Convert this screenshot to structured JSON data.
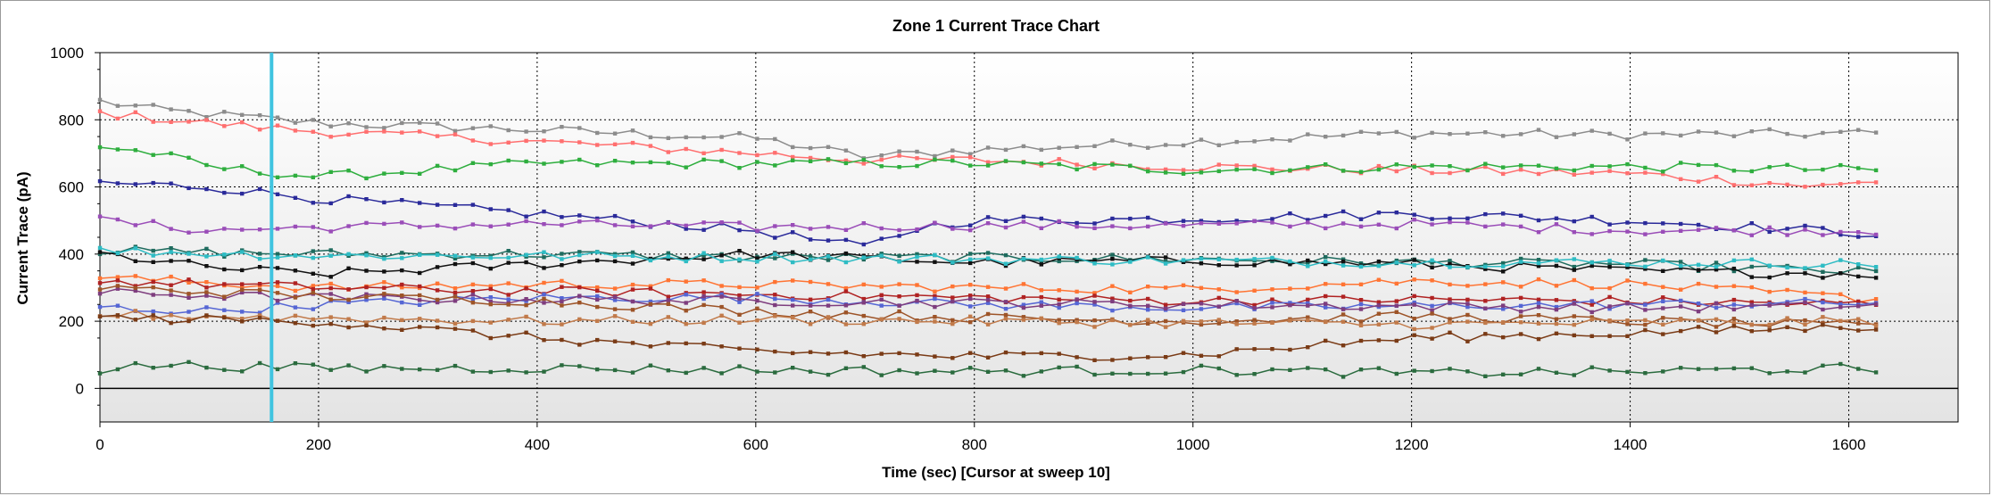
{
  "chart_data": {
    "type": "line",
    "title": "Zone 1 Current Trace Chart",
    "xlabel": "Time (sec) [Cursor at sweep 10]",
    "ylabel": "Current Trace (pA)",
    "xlim": [
      0,
      1700
    ],
    "ylim": [
      -100,
      1000
    ],
    "xticks": [
      0,
      200,
      400,
      600,
      800,
      1000,
      1200,
      1400,
      1600
    ],
    "yticks": [
      0,
      200,
      400,
      600,
      800,
      1000
    ],
    "cursor_x": 157,
    "grid": true,
    "legend": "none",
    "background_gradient": [
      "#ffffff",
      "#e4e4e4"
    ],
    "x_start": 0,
    "x_step": 16.25,
    "x_count": 101,
    "series": [
      {
        "color": "#8c8c8c",
        "anchors": [
          [
            0,
            855
          ],
          [
            50,
            830
          ],
          [
            200,
            790
          ],
          [
            400,
            770
          ],
          [
            600,
            745
          ],
          [
            700,
            690
          ],
          [
            800,
            710
          ],
          [
            1000,
            735
          ],
          [
            1200,
            760
          ],
          [
            1400,
            755
          ],
          [
            1630,
            760
          ]
        ]
      },
      {
        "color": "#ff6f6f",
        "anchors": [
          [
            0,
            820
          ],
          [
            100,
            790
          ],
          [
            200,
            765
          ],
          [
            400,
            735
          ],
          [
            600,
            700
          ],
          [
            700,
            680
          ],
          [
            800,
            680
          ],
          [
            1000,
            660
          ],
          [
            1200,
            650
          ],
          [
            1400,
            640
          ],
          [
            1580,
            600
          ],
          [
            1630,
            620
          ]
        ]
      },
      {
        "color": "#2eae3e",
        "anchors": [
          [
            0,
            720
          ],
          [
            50,
            700
          ],
          [
            100,
            660
          ],
          [
            200,
            630
          ],
          [
            400,
            670
          ],
          [
            600,
            670
          ],
          [
            800,
            670
          ],
          [
            1000,
            650
          ],
          [
            1200,
            660
          ],
          [
            1400,
            660
          ],
          [
            1630,
            650
          ]
        ]
      },
      {
        "color": "#2a2a9a",
        "anchors": [
          [
            0,
            612
          ],
          [
            100,
            600
          ],
          [
            200,
            565
          ],
          [
            400,
            520
          ],
          [
            600,
            470
          ],
          [
            700,
            420
          ],
          [
            750,
            480
          ],
          [
            800,
            500
          ],
          [
            1000,
            505
          ],
          [
            1200,
            520
          ],
          [
            1400,
            500
          ],
          [
            1630,
            460
          ]
        ]
      },
      {
        "color": "#9a4db8",
        "anchors": [
          [
            0,
            500
          ],
          [
            100,
            470
          ],
          [
            200,
            480
          ],
          [
            400,
            490
          ],
          [
            600,
            480
          ],
          [
            800,
            485
          ],
          [
            1000,
            485
          ],
          [
            1200,
            490
          ],
          [
            1400,
            470
          ],
          [
            1630,
            470
          ]
        ]
      },
      {
        "color": "#1e6b5e",
        "anchors": [
          [
            0,
            410
          ],
          [
            200,
            400
          ],
          [
            400,
            400
          ],
          [
            600,
            390
          ],
          [
            800,
            390
          ],
          [
            1000,
            385
          ],
          [
            1200,
            375
          ],
          [
            1400,
            370
          ],
          [
            1630,
            345
          ]
        ]
      },
      {
        "color": "#111111",
        "anchors": [
          [
            0,
            400
          ],
          [
            100,
            360
          ],
          [
            200,
            340
          ],
          [
            400,
            370
          ],
          [
            600,
            400
          ],
          [
            800,
            375
          ],
          [
            1000,
            380
          ],
          [
            1200,
            370
          ],
          [
            1400,
            350
          ],
          [
            1630,
            340
          ]
        ]
      },
      {
        "color": "#2ebcc4",
        "anchors": [
          [
            0,
            410
          ],
          [
            200,
            395
          ],
          [
            400,
            395
          ],
          [
            600,
            390
          ],
          [
            800,
            385
          ],
          [
            1000,
            380
          ],
          [
            1200,
            375
          ],
          [
            1400,
            375
          ],
          [
            1630,
            370
          ]
        ]
      },
      {
        "color": "#ff7433",
        "anchors": [
          [
            0,
            330
          ],
          [
            200,
            300
          ],
          [
            400,
            310
          ],
          [
            600,
            310
          ],
          [
            800,
            300
          ],
          [
            1000,
            295
          ],
          [
            1200,
            320
          ],
          [
            1400,
            310
          ],
          [
            1630,
            265
          ]
        ]
      },
      {
        "color": "#b02222",
        "anchors": [
          [
            0,
            320
          ],
          [
            200,
            300
          ],
          [
            400,
            290
          ],
          [
            600,
            280
          ],
          [
            800,
            270
          ],
          [
            1000,
            260
          ],
          [
            1200,
            265
          ],
          [
            1400,
            260
          ],
          [
            1630,
            250
          ]
        ]
      },
      {
        "color": "#5566d4",
        "anchors": [
          [
            0,
            240
          ],
          [
            100,
            230
          ],
          [
            200,
            250
          ],
          [
            400,
            270
          ],
          [
            600,
            270
          ],
          [
            800,
            250
          ],
          [
            1000,
            240
          ],
          [
            1200,
            245
          ],
          [
            1400,
            250
          ],
          [
            1630,
            255
          ]
        ]
      },
      {
        "color": "#7e3d7e",
        "anchors": [
          [
            0,
            285
          ],
          [
            200,
            270
          ],
          [
            400,
            265
          ],
          [
            600,
            260
          ],
          [
            800,
            255
          ],
          [
            1000,
            250
          ],
          [
            1200,
            245
          ],
          [
            1400,
            240
          ],
          [
            1630,
            245
          ]
        ]
      },
      {
        "color": "#9d5428",
        "anchors": [
          [
            0,
            300
          ],
          [
            200,
            275
          ],
          [
            400,
            260
          ],
          [
            600,
            230
          ],
          [
            800,
            210
          ],
          [
            1000,
            200
          ],
          [
            1200,
            215
          ],
          [
            1400,
            200
          ],
          [
            1630,
            185
          ]
        ]
      },
      {
        "color": "#c17a4a",
        "anchors": [
          [
            0,
            220
          ],
          [
            200,
            210
          ],
          [
            400,
            200
          ],
          [
            600,
            205
          ],
          [
            800,
            200
          ],
          [
            1000,
            195
          ],
          [
            1200,
            190
          ],
          [
            1400,
            195
          ],
          [
            1630,
            200
          ]
        ]
      },
      {
        "color": "#7a3b16",
        "anchors": [
          [
            0,
            210
          ],
          [
            200,
            200
          ],
          [
            400,
            150
          ],
          [
            600,
            110
          ],
          [
            800,
            95
          ],
          [
            1000,
            100
          ],
          [
            1200,
            150
          ],
          [
            1400,
            165
          ],
          [
            1630,
            185
          ]
        ]
      },
      {
        "color": "#2a6b3e",
        "anchors": [
          [
            0,
            55
          ],
          [
            50,
            70
          ],
          [
            200,
            60
          ],
          [
            400,
            60
          ],
          [
            600,
            55
          ],
          [
            800,
            50
          ],
          [
            1000,
            55
          ],
          [
            1200,
            45
          ],
          [
            1400,
            50
          ],
          [
            1600,
            60
          ],
          [
            1630,
            30
          ]
        ]
      }
    ]
  }
}
